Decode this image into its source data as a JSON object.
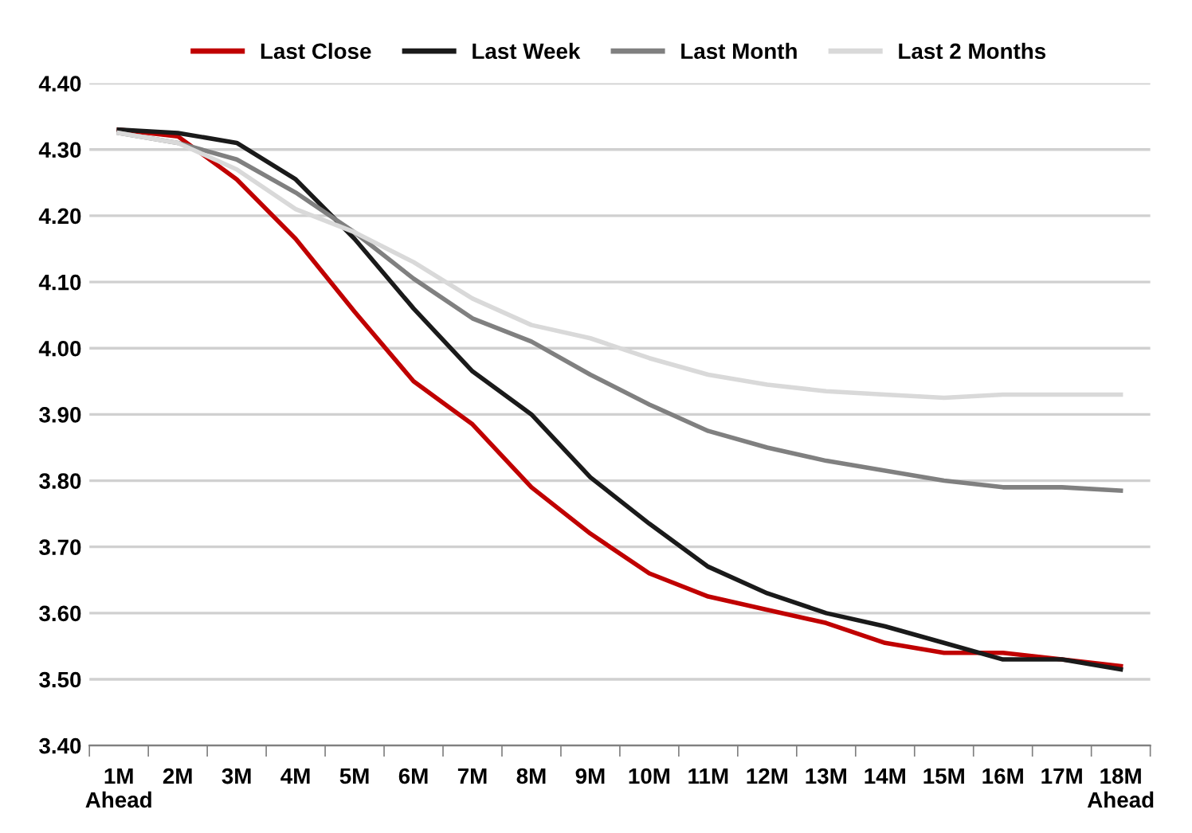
{
  "chart_data": {
    "type": "line",
    "categories": [
      "1M\nAhead",
      "2M",
      "3M",
      "4M",
      "5M",
      "6M",
      "7M",
      "8M",
      "9M",
      "10M",
      "11M",
      "12M",
      "13M",
      "14M",
      "15M",
      "16M",
      "17M",
      "18M\nAhead"
    ],
    "series": [
      {
        "name": "Last Close",
        "color": "#c00000",
        "values": [
          4.33,
          4.32,
          4.255,
          4.165,
          4.055,
          3.95,
          3.885,
          3.79,
          3.72,
          3.66,
          3.625,
          3.605,
          3.585,
          3.555,
          3.54,
          3.54,
          3.53,
          3.52
        ]
      },
      {
        "name": "Last Week",
        "color": "#1a1a1a",
        "values": [
          4.33,
          4.325,
          4.31,
          4.255,
          4.165,
          4.06,
          3.965,
          3.9,
          3.805,
          3.735,
          3.67,
          3.63,
          3.6,
          3.58,
          3.555,
          3.53,
          3.53,
          3.515
        ]
      },
      {
        "name": "Last Month",
        "color": "#808080",
        "values": [
          4.325,
          4.31,
          4.285,
          4.235,
          4.175,
          4.105,
          4.045,
          4.01,
          3.96,
          3.915,
          3.875,
          3.85,
          3.83,
          3.815,
          3.8,
          3.79,
          3.79,
          3.785
        ]
      },
      {
        "name": "Last 2 Months",
        "color": "#d9d9d9",
        "values": [
          4.325,
          4.31,
          4.27,
          4.21,
          4.175,
          4.13,
          4.075,
          4.035,
          4.015,
          3.985,
          3.96,
          3.945,
          3.935,
          3.93,
          3.925,
          3.93,
          3.93,
          3.93
        ]
      }
    ],
    "ylim": [
      3.4,
      4.4
    ],
    "yticks": [
      {
        "value": 3.4,
        "label": "3.40"
      },
      {
        "value": 3.5,
        "label": "3.50"
      },
      {
        "value": 3.6,
        "label": "3.60"
      },
      {
        "value": 3.7,
        "label": "3.70"
      },
      {
        "value": 3.8,
        "label": "3.80"
      },
      {
        "value": 3.9,
        "label": "3.90"
      },
      {
        "value": 4.0,
        "label": "4.00"
      },
      {
        "value": 4.1,
        "label": "4.10"
      },
      {
        "value": 4.2,
        "label": "4.20"
      },
      {
        "value": 4.3,
        "label": "4.30"
      },
      {
        "value": 4.4,
        "label": "4.40"
      }
    ],
    "grid": "y",
    "legend": "top",
    "marker": "none",
    "line_style": "solid"
  }
}
